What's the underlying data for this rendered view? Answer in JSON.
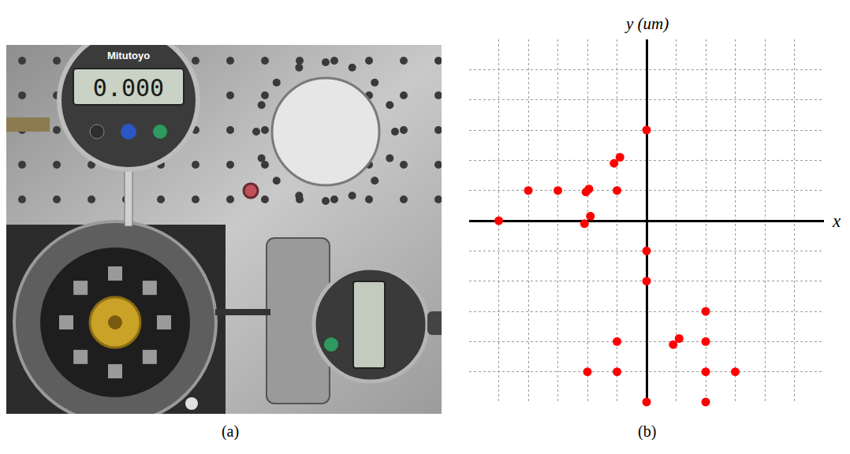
{
  "chart_data": {
    "type": "scatter",
    "x_label": "x",
    "y_label": "y (um)",
    "x": [
      0,
      -1.1,
      -0.9,
      -4,
      -3,
      -2.05,
      -1.95,
      -1,
      -5,
      -2.1,
      -1.9,
      0,
      0,
      2,
      -1,
      0.9,
      1.1,
      2,
      -2,
      -1,
      2,
      3,
      0,
      2
    ],
    "y": [
      3,
      1.9,
      2.1,
      1,
      1,
      0.95,
      1.05,
      1,
      0,
      -0.1,
      0.15,
      -1,
      -2,
      -3,
      -4,
      -4.1,
      -3.9,
      -4,
      -5,
      -5,
      -5,
      -5,
      -6,
      -6
    ],
    "color": "#ff0000",
    "marker": "circle",
    "xlim": [
      -6,
      6
    ],
    "ylim": [
      -6,
      6
    ],
    "xticks": [
      -6,
      -5,
      -4,
      -3,
      -2,
      -1,
      0,
      1,
      2,
      3,
      4,
      5,
      6
    ],
    "yticks": [
      -6,
      -5,
      -4,
      -3,
      -2,
      -1,
      0,
      1,
      2,
      3,
      4,
      5,
      6
    ],
    "grid": true,
    "tick_labels": false
  },
  "panel_labels": [
    "(a)",
    "(b)"
  ],
  "photo": {
    "brand": "Mitutoyo",
    "reading": "0.000"
  }
}
